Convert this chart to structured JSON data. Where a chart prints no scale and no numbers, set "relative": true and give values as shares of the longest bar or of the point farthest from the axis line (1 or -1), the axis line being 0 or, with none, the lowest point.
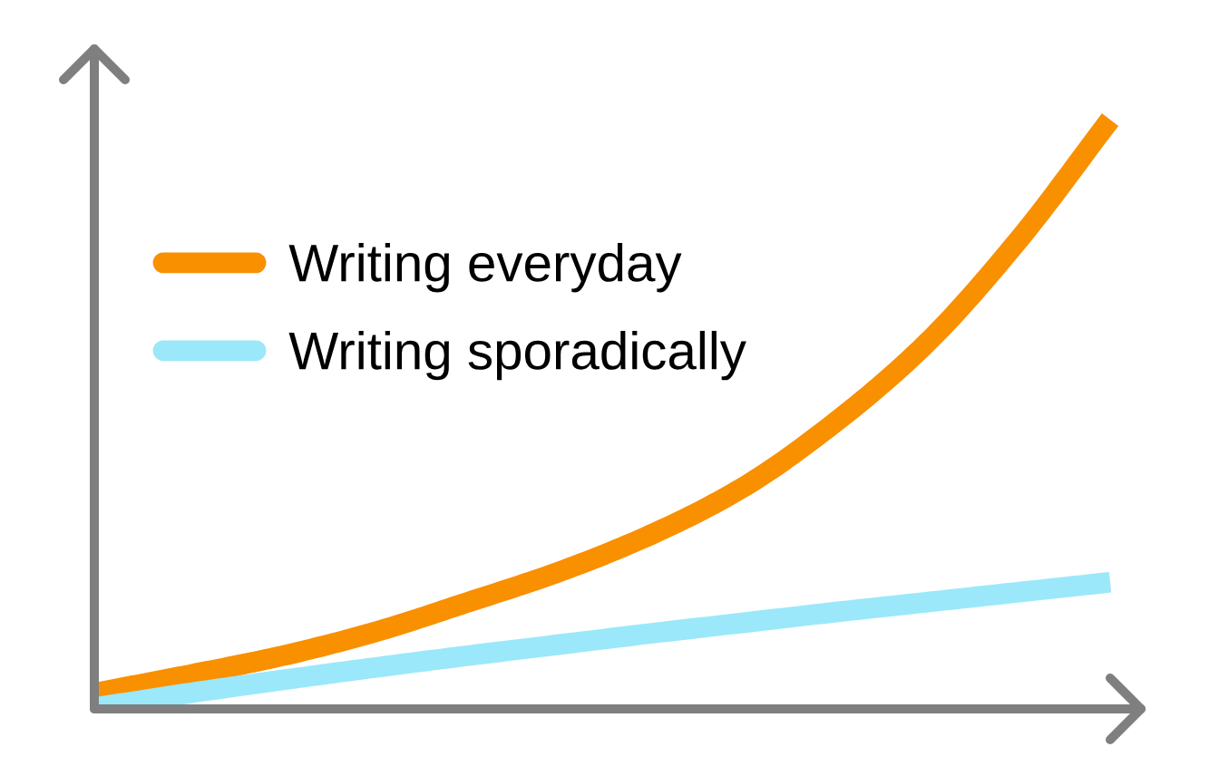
{
  "chart_data": {
    "type": "line",
    "relative": true,
    "categories": [
      null,
      null,
      null,
      null,
      null,
      null,
      null,
      null,
      null,
      null,
      null,
      null
    ],
    "series": [
      {
        "name": "Writing everyday",
        "color": "#f99000",
        "values": [
          0.028,
          0.058,
          0.09,
          0.13,
          0.18,
          0.232,
          0.295,
          0.375,
          0.485,
          0.62,
          0.795,
          1
        ]
      },
      {
        "name": "Writing sporadically",
        "color": "#9be8fa",
        "values": [
          0.003,
          0.027,
          0.049,
          0.07,
          0.09,
          0.109,
          0.128,
          0.146,
          0.164,
          0.181,
          0.198,
          0.215
        ]
      }
    ],
    "legend": "top left",
    "tick_labels": false,
    "line_style": "solid"
  }
}
